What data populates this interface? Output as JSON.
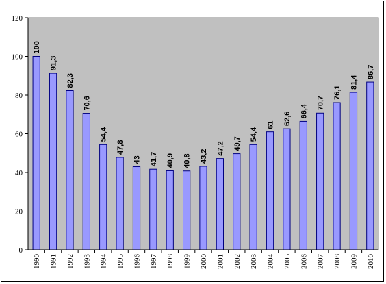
{
  "chart_data": {
    "type": "bar",
    "title": "",
    "xlabel": "",
    "ylabel": "",
    "categories": [
      "1990",
      "1991",
      "1992",
      "1993",
      "1994",
      "1995",
      "1996",
      "1997",
      "1998",
      "1999",
      "2000",
      "2001",
      "2002",
      "2003",
      "2004",
      "2005",
      "2006",
      "2007",
      "2008",
      "2009",
      "2010"
    ],
    "values": [
      100,
      91.3,
      82.3,
      70.6,
      54.4,
      47.8,
      43,
      41.7,
      40.9,
      40.8,
      43.2,
      47.2,
      49.7,
      54.4,
      61,
      62.6,
      66.4,
      70.7,
      76.1,
      81.4,
      86.7
    ],
    "data_labels": [
      "100",
      "91,3",
      "82,3",
      "70,6",
      "54,4",
      "47,8",
      "43",
      "41,7",
      "40,9",
      "40,8",
      "43,2",
      "47,2",
      "49,7",
      "54,4",
      "61",
      "62,6",
      "66,4",
      "70,7",
      "76,1",
      "81,4",
      "86,7"
    ],
    "y_ticks": [
      "0",
      "20",
      "40",
      "60",
      "80",
      "100",
      "120"
    ],
    "ylim": [
      0,
      120
    ],
    "grid": false,
    "legend": "none",
    "plot_background": "#c0c0c0",
    "bar_color": "#9999ff",
    "bar_edge": "#000080"
  }
}
